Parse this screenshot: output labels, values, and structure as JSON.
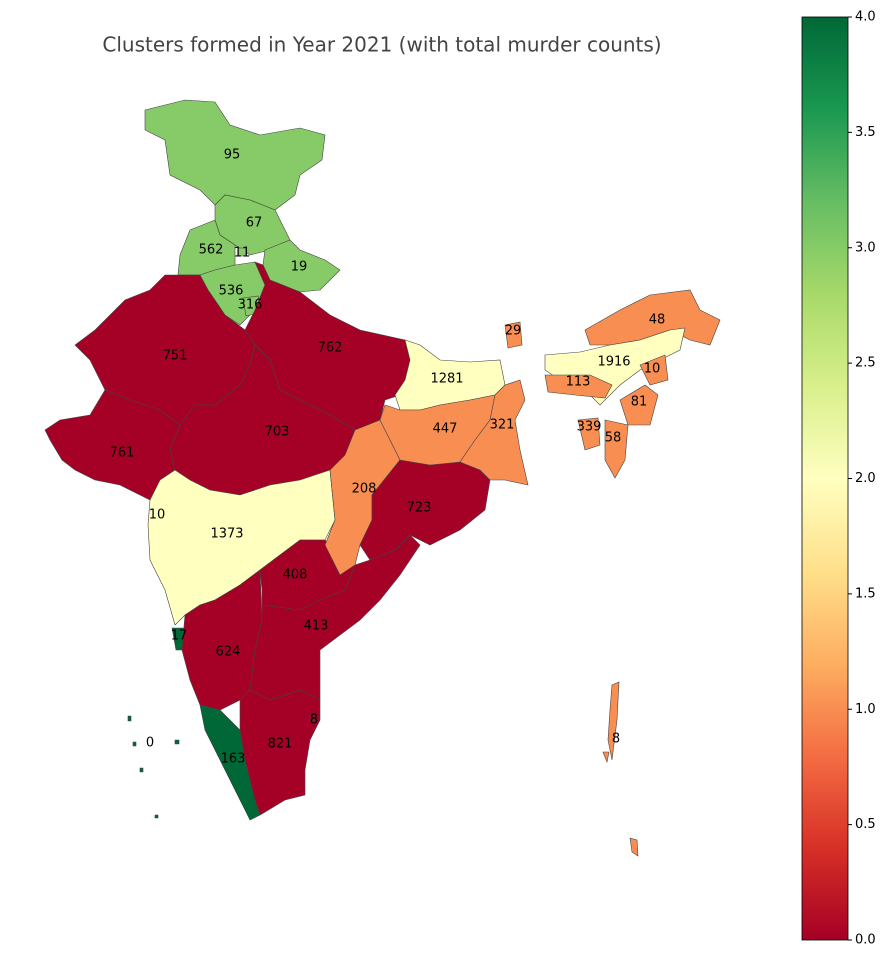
{
  "chart_data": {
    "type": "choropleth",
    "title": "Clusters formed in Year 2021 (with total murder counts)",
    "colormap": "RdYlGn",
    "regions": [
      {
        "value": 95,
        "cluster": 3
      },
      {
        "value": 67,
        "cluster": 3
      },
      {
        "value": 562,
        "cluster": 3
      },
      {
        "value": 11,
        "cluster": 3
      },
      {
        "value": 19,
        "cluster": 3
      },
      {
        "value": 536,
        "cluster": 3
      },
      {
        "value": 316,
        "cluster": 3
      },
      {
        "value": 751,
        "cluster": 0
      },
      {
        "value": 762,
        "cluster": 0
      },
      {
        "value": 703,
        "cluster": 0
      },
      {
        "value": 761,
        "cluster": 0
      },
      {
        "value": 10,
        "cluster": 0
      },
      {
        "value": 1373,
        "cluster": 2
      },
      {
        "value": 17,
        "cluster": 4
      },
      {
        "value": 624,
        "cluster": 0
      },
      {
        "value": 163,
        "cluster": 4
      },
      {
        "value": 0,
        "cluster": 4
      },
      {
        "value": 408,
        "cluster": 0
      },
      {
        "value": 413,
        "cluster": 0
      },
      {
        "value": 821,
        "cluster": 0
      },
      {
        "value": 8,
        "cluster": 0
      },
      {
        "value": 208,
        "cluster": 1
      },
      {
        "value": 723,
        "cluster": 0
      },
      {
        "value": 1281,
        "cluster": 2
      },
      {
        "value": 447,
        "cluster": 1
      },
      {
        "value": 321,
        "cluster": 1
      },
      {
        "value": 29,
        "cluster": 1
      },
      {
        "value": 48,
        "cluster": 1
      },
      {
        "value": 1916,
        "cluster": 2
      },
      {
        "value": 113,
        "cluster": 1
      },
      {
        "value": 10,
        "cluster": 1
      },
      {
        "value": 81,
        "cluster": 1
      },
      {
        "value": 58,
        "cluster": 1
      },
      {
        "value": 339,
        "cluster": 1
      },
      {
        "value": 8,
        "cluster": 1
      }
    ],
    "clim": [
      0,
      4
    ],
    "cticks": [
      {
        "value": 0,
        "label": "0.0"
      },
      {
        "value": 0.5,
        "label": "0.5"
      },
      {
        "value": 1,
        "label": "1.0"
      },
      {
        "value": 1.5,
        "label": "1.5"
      },
      {
        "value": 2,
        "label": "2.0"
      },
      {
        "value": 2.5,
        "label": "2.5"
      },
      {
        "value": 3,
        "label": "3.0"
      },
      {
        "value": 3.5,
        "label": "3.5"
      },
      {
        "value": 4,
        "label": "4.0"
      }
    ]
  }
}
